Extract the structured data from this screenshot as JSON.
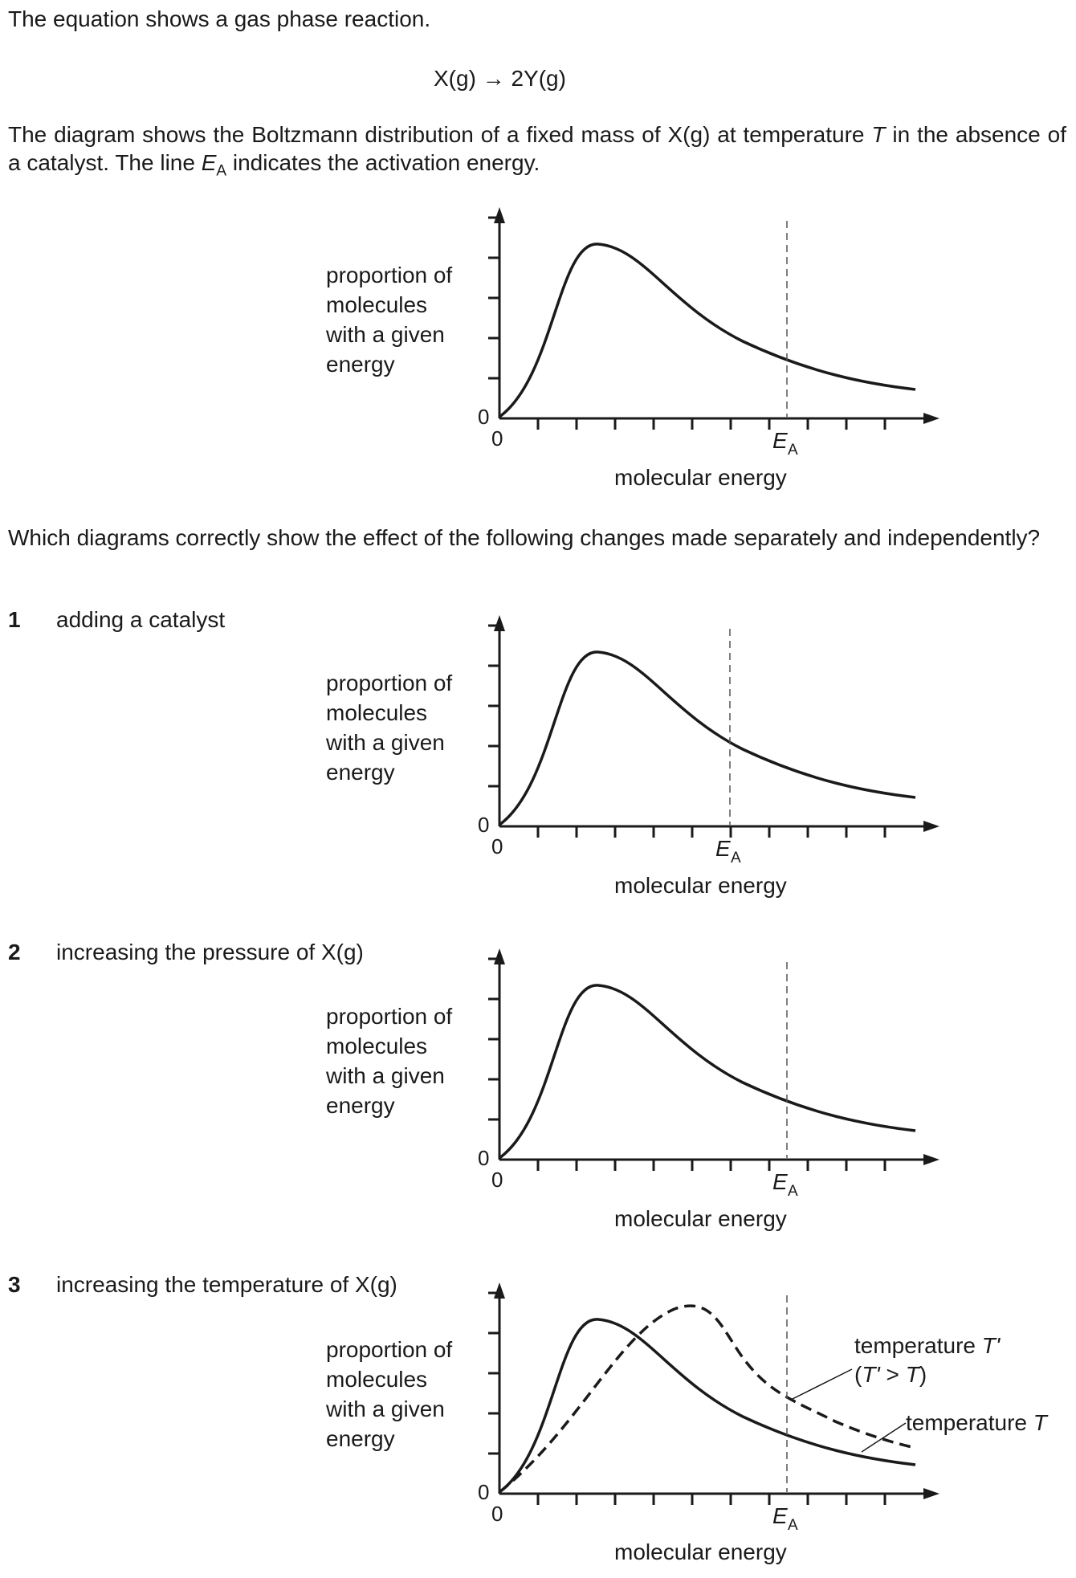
{
  "intro": {
    "line1": "The equation shows a gas phase reaction.",
    "equation": "X(g) → 2Y(g)",
    "para_a": "The diagram shows the Boltzmann distribution of a fixed mass of X(g) at temperature ",
    "para_T": "T",
    "para_b": " in the absence of a catalyst. The line ",
    "para_E": "E",
    "para_sub": "A",
    "para_c": " indicates the activation energy."
  },
  "question": "Which diagrams correctly show the effect of the following changes made separately and independently?",
  "axis": {
    "ylabel_lines": [
      "proportion of",
      "molecules",
      "with a given",
      "energy"
    ],
    "xlabel": "molecular energy",
    "origin_y": "0",
    "origin_x": "0",
    "ea_main": "E",
    "ea_sub": "A"
  },
  "options": [
    {
      "number": "1",
      "text": "adding a catalyst"
    },
    {
      "number": "2",
      "text": "increasing the pressure of X(g)"
    },
    {
      "number": "3",
      "text": "increasing the temperature of X(g)"
    }
  ],
  "legend": {
    "t_prime_line1_a": "temperature ",
    "t_prime_line1_b": "T'",
    "t_prime_line2_a": "(",
    "t_prime_line2_b": "T'",
    "t_prime_line2_c": " > ",
    "t_prime_line2_d": "T",
    "t_prime_line2_e": ")",
    "t_line_a": "temperature ",
    "t_line_b": "T"
  },
  "colors": {
    "ink": "#1a1a1a"
  }
}
